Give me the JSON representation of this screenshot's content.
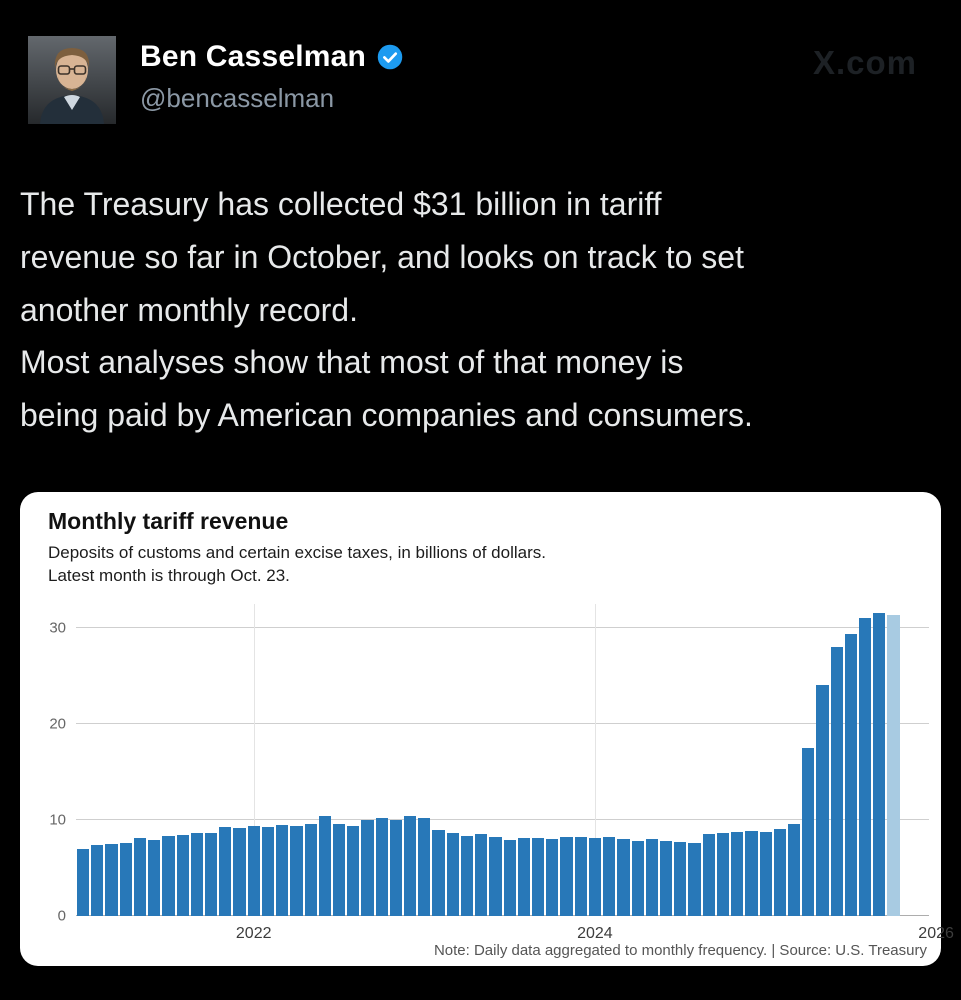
{
  "header": {
    "display_name": "Ben Casselman",
    "handle": "@bencasselman",
    "verified": true,
    "watermark": "X.com"
  },
  "tweet": {
    "paragraph1": "The Treasury has collected $31 billion in tariff\nrevenue so far in October, and looks on track to set\nanother monthly record.",
    "paragraph2": "Most analyses show that most of that money is\nbeing paid by American companies and consumers."
  },
  "chart_data": {
    "type": "bar",
    "title": "Monthly tariff revenue",
    "subtitle_line1": "Deposits of customs and certain excise taxes, in billions of dollars.",
    "subtitle_line2": "Latest month is through Oct. 23.",
    "note": "Note: Daily data aggregated to monthly frequency. | Source: U.S. Treasury",
    "xlabel": "",
    "ylabel": "billions of dollars",
    "ylim": [
      0,
      32.5
    ],
    "y_ticks": [
      0,
      10,
      20,
      30
    ],
    "x_tick_years": [
      2022,
      2024,
      2026
    ],
    "x_range": [
      "2021-01",
      "2025-12"
    ],
    "grid": true,
    "legend": false,
    "highlight_last_bar": true,
    "bar_color": "#2878b8",
    "last_bar_color": "#a8cbe2",
    "months": [
      "2021-01",
      "2021-02",
      "2021-03",
      "2021-04",
      "2021-05",
      "2021-06",
      "2021-07",
      "2021-08",
      "2021-09",
      "2021-10",
      "2021-11",
      "2021-12",
      "2022-01",
      "2022-02",
      "2022-03",
      "2022-04",
      "2022-05",
      "2022-06",
      "2022-07",
      "2022-08",
      "2022-09",
      "2022-10",
      "2022-11",
      "2022-12",
      "2023-01",
      "2023-02",
      "2023-03",
      "2023-04",
      "2023-05",
      "2023-06",
      "2023-07",
      "2023-08",
      "2023-09",
      "2023-10",
      "2023-11",
      "2023-12",
      "2024-01",
      "2024-02",
      "2024-03",
      "2024-04",
      "2024-05",
      "2024-06",
      "2024-07",
      "2024-08",
      "2024-09",
      "2024-10",
      "2024-11",
      "2024-12",
      "2025-01",
      "2025-02",
      "2025-03",
      "2025-04",
      "2025-05",
      "2025-06",
      "2025-07",
      "2025-08",
      "2025-09",
      "2025-10"
    ],
    "values": [
      7.0,
      7.4,
      7.5,
      7.6,
      8.1,
      7.9,
      8.3,
      8.4,
      8.6,
      8.6,
      9.3,
      9.2,
      9.4,
      9.3,
      9.5,
      9.4,
      9.6,
      10.4,
      9.6,
      9.4,
      10.0,
      10.2,
      10.0,
      10.4,
      10.2,
      8.9,
      8.6,
      8.3,
      8.5,
      8.2,
      7.9,
      8.1,
      8.1,
      8.0,
      8.2,
      8.2,
      8.1,
      8.2,
      8.0,
      7.8,
      8.0,
      7.8,
      7.7,
      7.6,
      8.5,
      8.6,
      8.7,
      8.8,
      8.7,
      9.0,
      9.6,
      17.5,
      24.1,
      28.0,
      29.4,
      31.0,
      31.6,
      31.3
    ]
  },
  "colors": {
    "background": "#000000",
    "text": "#e7e9ea",
    "handle_gray": "#8b98a5",
    "verified_blue": "#1d9bf0",
    "card_background": "#ffffff"
  }
}
